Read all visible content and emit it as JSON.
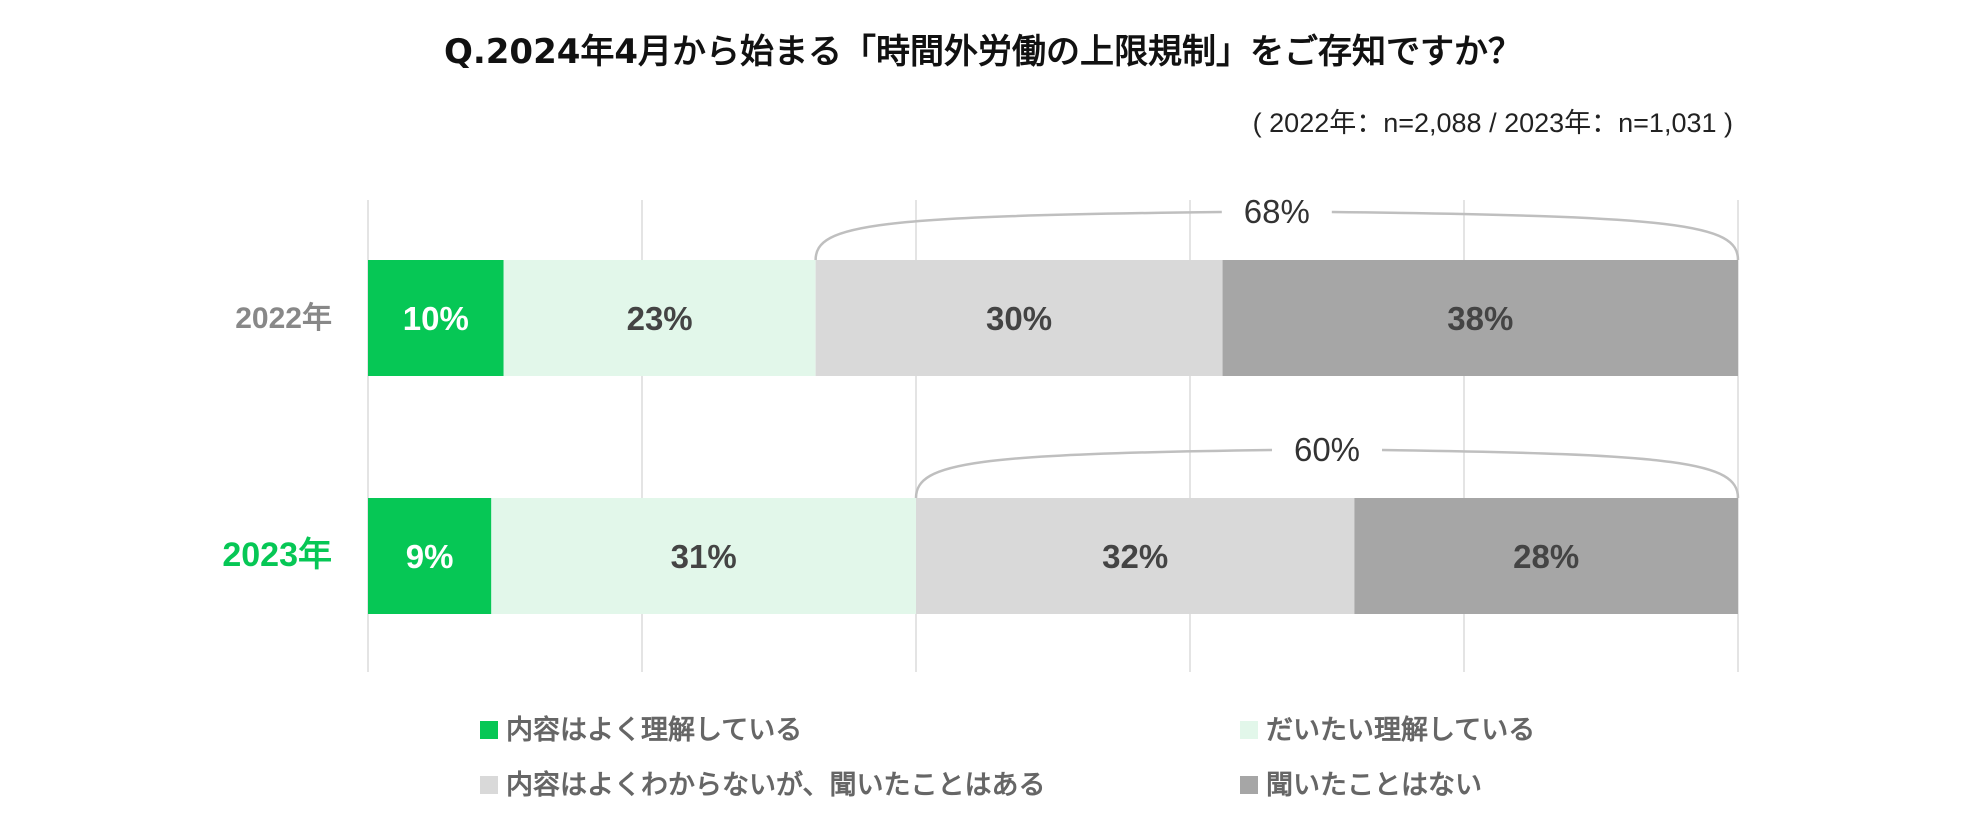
{
  "chart_data": {
    "type": "bar",
    "orientation": "horizontal",
    "stacked": true,
    "title": "Q.2024年4月から始まる「時間外労働の上限規制」をご存知ですか？",
    "subtitle": "( 2022年：n=2,088 / 2023年：n=1,031 )",
    "categories": [
      "2022年",
      "2023年"
    ],
    "category_colors": [
      "#888888",
      "#06C755"
    ],
    "xlim": [
      0,
      100
    ],
    "grid": true,
    "legend_position": "bottom",
    "series": [
      {
        "name": "内容はよく理解している",
        "color": "#06C755",
        "label_color": "#FFFFFF",
        "values": [
          10,
          9
        ],
        "labels": [
          "10%",
          "9%"
        ]
      },
      {
        "name": "だいたい理解している",
        "color": "#E2F7EA",
        "label_color": "#444444",
        "values": [
          23,
          31
        ],
        "labels": [
          "23%",
          "31%"
        ]
      },
      {
        "name": "内容はよくわからないが、聞いたことはある",
        "color": "#D9D9D9",
        "label_color": "#444444",
        "values": [
          30,
          32
        ],
        "labels": [
          "30%",
          "32%"
        ]
      },
      {
        "name": "聞いたことはない",
        "color": "#A6A6A6",
        "label_color": "#444444",
        "values": [
          38,
          28
        ],
        "labels": [
          "38%",
          "28%"
        ]
      }
    ],
    "annotations": [
      {
        "category": "2022年",
        "label": "68%",
        "from_series": 2,
        "to_series": 3
      },
      {
        "category": "2023年",
        "label": "60%",
        "from_series": 2,
        "to_series": 3
      }
    ]
  }
}
